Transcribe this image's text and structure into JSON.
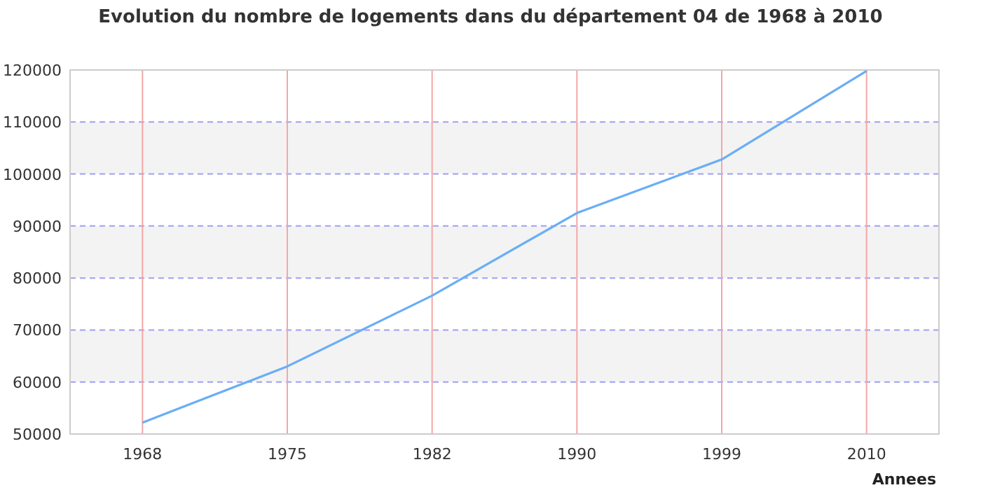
{
  "chart_data": {
    "type": "line",
    "title": "Evolution du nombre de logements dans du département 04 de 1968 à 2010",
    "xlabel": "Annees",
    "categories": [
      "1968",
      "1975",
      "1982",
      "1990",
      "1999",
      "2010"
    ],
    "series": [
      {
        "color": "#6aaef5",
        "values": [
          52200,
          63000,
          76600,
          92500,
          102800,
          119800
        ]
      }
    ],
    "ylim": [
      50000,
      120000
    ],
    "yticks": [
      50000,
      60000,
      70000,
      80000,
      90000,
      100000,
      110000,
      120000
    ],
    "grid": true,
    "marker": "none",
    "line_style": "solid"
  }
}
